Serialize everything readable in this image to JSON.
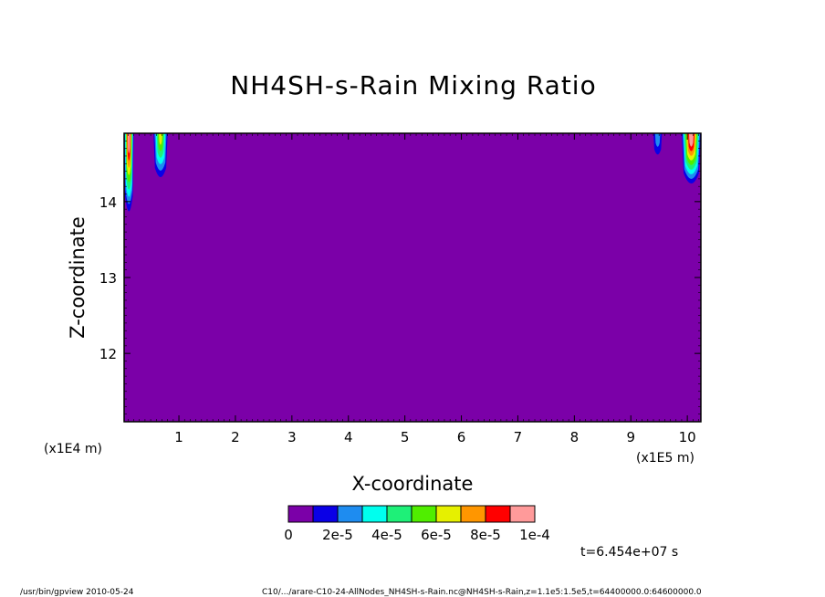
{
  "chart_data": {
    "type": "heatmap",
    "title": "NH4SH-s-Rain Mixing Ratio",
    "xlabel": "X-coordinate",
    "ylabel": "Z-coordinate",
    "x_unit_left": "(x1E4 m)",
    "x_unit_right": "(x1E5 m)",
    "xlim": [
      0.03,
      10.24
    ],
    "ylim": [
      11.1,
      14.9
    ],
    "x_ticks": [
      1,
      2,
      3,
      4,
      5,
      6,
      7,
      8,
      9,
      10
    ],
    "x_tick_labels": [
      "1",
      "2",
      "3",
      "4",
      "5",
      "6",
      "7",
      "8",
      "9",
      "10"
    ],
    "y_ticks": [
      12,
      13,
      14
    ],
    "y_tick_labels": [
      "12",
      "13",
      "14"
    ],
    "background_level": 0,
    "colorbar": {
      "levels": [
        0,
        1e-05,
        2e-05,
        3e-05,
        4e-05,
        5e-05,
        6e-05,
        7e-05,
        8e-05,
        9e-05,
        0.0001
      ],
      "colors": [
        "#7b00a8",
        "#0a00e6",
        "#1e8cf0",
        "#00ffee",
        "#1ef078",
        "#50ee00",
        "#e6f000",
        "#ff9600",
        "#ff0000",
        "#ff9a9a"
      ],
      "labels": [
        "0",
        "2e-5",
        "4e-5",
        "6e-5",
        "8e-5",
        "1e-4"
      ]
    },
    "time_label": "t=6.454e+07 s",
    "features": [
      {
        "x": [
          0.03,
          0.2
        ],
        "z_bottom": 13.72,
        "max_level": 0.0001
      },
      {
        "x": [
          0.55,
          0.8
        ],
        "z_bottom": 14.25,
        "max_level": 6e-05
      },
      {
        "x": [
          9.4,
          9.55
        ],
        "z_bottom": 14.6,
        "max_level": 2e-05
      },
      {
        "x": [
          9.9,
          10.24
        ],
        "z_bottom": 14.15,
        "max_level": 0.0001
      }
    ]
  },
  "footer": {
    "left": "/usr/bin/gpview   2010-05-24",
    "right": "C10/.../arare-C10-24-AllNodes_NH4SH-s-Rain.nc@NH4SH-s-Rain,z=1.1e5:1.5e5,t=64400000.0:64600000.0"
  }
}
